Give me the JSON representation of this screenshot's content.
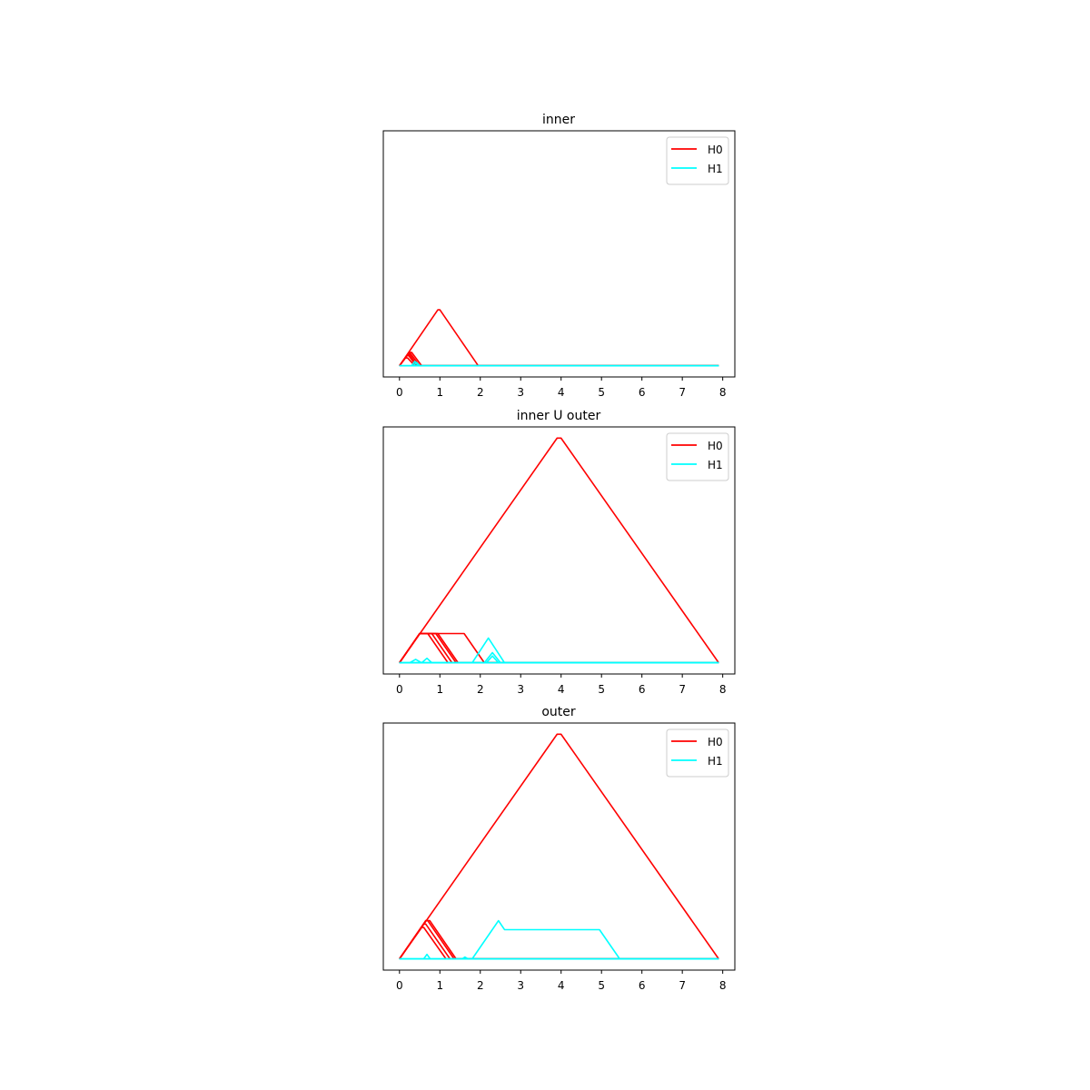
{
  "chart_data": [
    {
      "type": "line",
      "title": "inner",
      "xlabel": "",
      "ylabel": "",
      "xlim": [
        -0.4,
        8.3
      ],
      "ylim": [
        -0.05,
        1.05
      ],
      "xticks": [
        "0",
        "1",
        "2",
        "3",
        "4",
        "5",
        "6",
        "7",
        "8"
      ],
      "yticks_visible": false,
      "grid": false,
      "legend": "top-right",
      "series": [
        {
          "name": "H0",
          "color": "#ff0000",
          "lines": [
            [
              [
                0,
                0
              ],
              [
                0.95,
                0.25
              ],
              [
                1.0,
                0.25
              ],
              [
                1.95,
                0
              ],
              [
                7.9,
                0
              ]
            ],
            [
              [
                0,
                0
              ],
              [
                0.2,
                0.05
              ],
              [
                0.25,
                0.05
              ],
              [
                0.45,
                0
              ],
              [
                7.9,
                0
              ]
            ],
            [
              [
                0,
                0
              ],
              [
                0.22,
                0.055
              ],
              [
                0.27,
                0.055
              ],
              [
                0.5,
                0
              ],
              [
                7.9,
                0
              ]
            ],
            [
              [
                0,
                0
              ],
              [
                0.18,
                0.045
              ],
              [
                0.23,
                0.045
              ],
              [
                0.42,
                0
              ],
              [
                7.9,
                0
              ]
            ],
            [
              [
                0,
                0
              ],
              [
                0.25,
                0.06
              ],
              [
                0.3,
                0.06
              ],
              [
                0.55,
                0
              ],
              [
                7.9,
                0
              ]
            ],
            [
              [
                0,
                0
              ],
              [
                0.15,
                0.035
              ],
              [
                0.2,
                0.035
              ],
              [
                0.38,
                0
              ],
              [
                7.9,
                0
              ]
            ]
          ]
        },
        {
          "name": "H1",
          "color": "#00ffff",
          "lines": [
            [
              [
                0,
                0
              ],
              [
                0.3,
                0
              ],
              [
                0.38,
                0.02
              ],
              [
                0.46,
                0
              ],
              [
                7.9,
                0
              ]
            ],
            [
              [
                0,
                0
              ],
              [
                0.35,
                0
              ],
              [
                0.42,
                0.015
              ],
              [
                0.5,
                0
              ],
              [
                7.9,
                0
              ]
            ],
            [
              [
                0,
                0
              ],
              [
                7.9,
                0
              ]
            ]
          ]
        }
      ]
    },
    {
      "type": "line",
      "title": "inner U outer",
      "xlabel": "",
      "ylabel": "",
      "xlim": [
        -0.4,
        8.3
      ],
      "ylim": [
        -0.05,
        1.05
      ],
      "xticks": [
        "0",
        "1",
        "2",
        "3",
        "4",
        "5",
        "6",
        "7",
        "8"
      ],
      "yticks_visible": false,
      "grid": false,
      "legend": "top-right",
      "series": [
        {
          "name": "H0",
          "color": "#ff0000",
          "lines": [
            [
              [
                0,
                0
              ],
              [
                3.9,
                1.0
              ],
              [
                4.0,
                1.0
              ],
              [
                7.9,
                0
              ]
            ],
            [
              [
                0,
                0
              ],
              [
                0.5,
                0.13
              ],
              [
                0.7,
                0.13
              ],
              [
                1.2,
                0
              ],
              [
                7.9,
                0
              ]
            ],
            [
              [
                0,
                0
              ],
              [
                0.5,
                0.13
              ],
              [
                0.8,
                0.13
              ],
              [
                1.3,
                0
              ],
              [
                7.9,
                0
              ]
            ],
            [
              [
                0,
                0
              ],
              [
                0.5,
                0.13
              ],
              [
                0.9,
                0.13
              ],
              [
                1.4,
                0
              ],
              [
                7.9,
                0
              ]
            ],
            [
              [
                0,
                0
              ],
              [
                0.5,
                0.13
              ],
              [
                0.95,
                0.13
              ],
              [
                1.45,
                0
              ],
              [
                7.9,
                0
              ]
            ],
            [
              [
                0,
                0
              ],
              [
                0.5,
                0.13
              ],
              [
                1.6,
                0.13
              ],
              [
                2.1,
                0
              ],
              [
                7.9,
                0
              ]
            ]
          ]
        },
        {
          "name": "H1",
          "color": "#00ffff",
          "lines": [
            [
              [
                0,
                0
              ],
              [
                1.8,
                0
              ],
              [
                2.2,
                0.11
              ],
              [
                2.6,
                0
              ],
              [
                7.9,
                0
              ]
            ],
            [
              [
                0,
                0
              ],
              [
                2.1,
                0
              ],
              [
                2.3,
                0.045
              ],
              [
                2.5,
                0
              ],
              [
                7.9,
                0
              ]
            ],
            [
              [
                0,
                0
              ],
              [
                2.15,
                0
              ],
              [
                2.3,
                0.03
              ],
              [
                2.45,
                0
              ],
              [
                7.9,
                0
              ]
            ],
            [
              [
                0,
                0
              ],
              [
                0.25,
                0
              ],
              [
                0.4,
                0.015
              ],
              [
                0.55,
                0
              ],
              [
                7.9,
                0
              ]
            ],
            [
              [
                0,
                0
              ],
              [
                0.55,
                0
              ],
              [
                0.68,
                0.02
              ],
              [
                0.8,
                0
              ],
              [
                7.9,
                0
              ]
            ],
            [
              [
                0,
                0
              ],
              [
                7.9,
                0
              ]
            ]
          ]
        }
      ]
    },
    {
      "type": "line",
      "title": "outer",
      "xlabel": "",
      "ylabel": "",
      "xlim": [
        -0.4,
        8.3
      ],
      "ylim": [
        -0.05,
        1.05
      ],
      "xticks": [
        "0",
        "1",
        "2",
        "3",
        "4",
        "5",
        "6",
        "7",
        "8"
      ],
      "yticks_visible": false,
      "grid": false,
      "legend": "top-right",
      "series": [
        {
          "name": "H0",
          "color": "#ff0000",
          "lines": [
            [
              [
                0,
                0
              ],
              [
                3.9,
                1.0
              ],
              [
                4.0,
                1.0
              ],
              [
                7.9,
                0
              ]
            ],
            [
              [
                0,
                0
              ],
              [
                0.65,
                0.17
              ],
              [
                0.7,
                0.17
              ],
              [
                1.35,
                0
              ],
              [
                7.9,
                0
              ]
            ],
            [
              [
                0,
                0
              ],
              [
                0.65,
                0.17
              ],
              [
                0.75,
                0.17
              ],
              [
                1.4,
                0
              ],
              [
                7.9,
                0
              ]
            ],
            [
              [
                0,
                0
              ],
              [
                0.6,
                0.155
              ],
              [
                0.65,
                0.155
              ],
              [
                1.25,
                0
              ],
              [
                7.9,
                0
              ]
            ],
            [
              [
                0,
                0
              ],
              [
                0.55,
                0.14
              ],
              [
                0.6,
                0.14
              ],
              [
                1.15,
                0
              ],
              [
                7.9,
                0
              ]
            ]
          ]
        },
        {
          "name": "H1",
          "color": "#00ffff",
          "lines": [
            [
              [
                0,
                0
              ],
              [
                1.8,
                0
              ],
              [
                2.45,
                0.17
              ],
              [
                2.6,
                0.13
              ],
              [
                4.95,
                0.13
              ],
              [
                5.45,
                0
              ],
              [
                7.9,
                0
              ]
            ],
            [
              [
                0,
                0
              ],
              [
                0.6,
                0
              ],
              [
                0.68,
                0.02
              ],
              [
                0.76,
                0
              ],
              [
                7.9,
                0
              ]
            ],
            [
              [
                0,
                0
              ],
              [
                1.55,
                0
              ],
              [
                1.62,
                0.008
              ],
              [
                1.7,
                0
              ],
              [
                7.9,
                0
              ]
            ],
            [
              [
                0,
                0
              ],
              [
                7.9,
                0
              ]
            ]
          ]
        }
      ]
    }
  ]
}
